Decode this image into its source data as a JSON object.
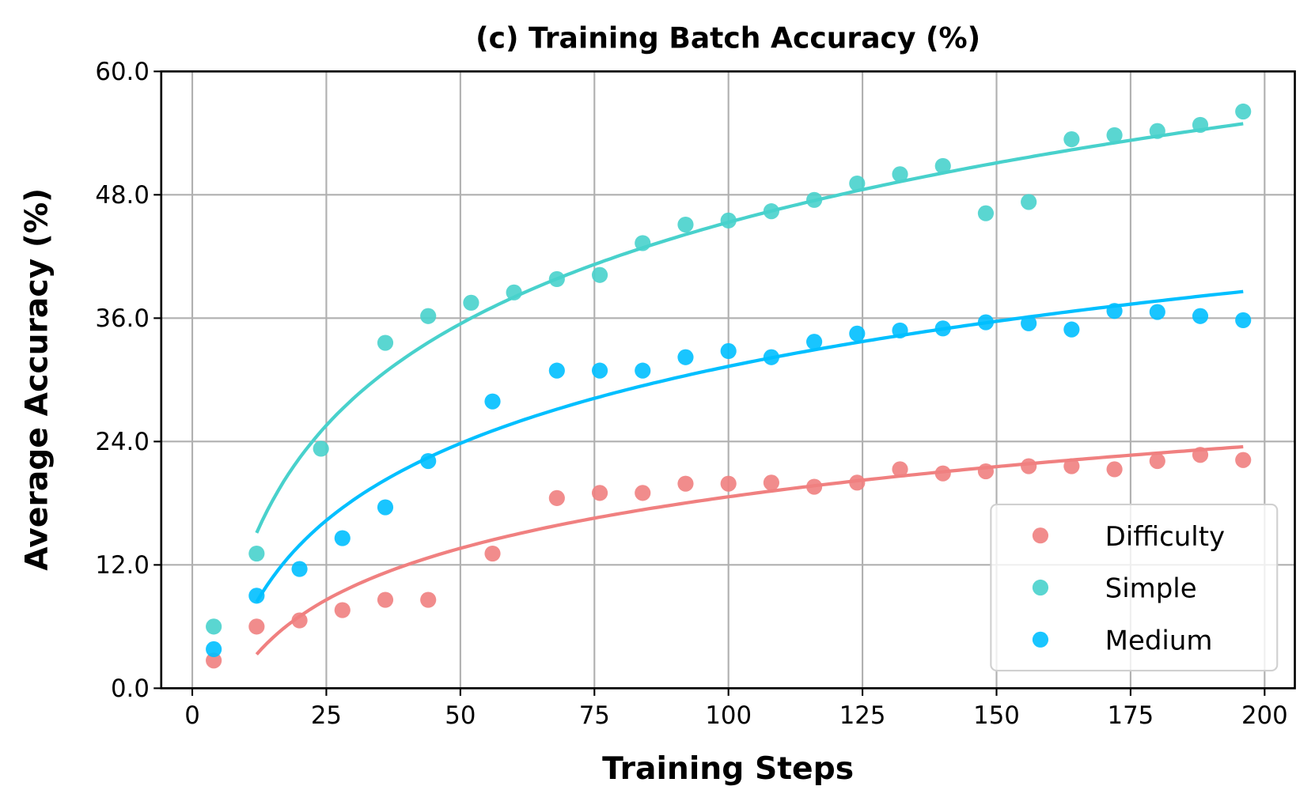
{
  "chart_data": {
    "type": "scatter",
    "title": "(c) Training Batch Accuracy (%)",
    "xlabel": "Training Steps",
    "ylabel": "Average Accuracy (%)",
    "xlim": [
      -6,
      205
    ],
    "ylim": [
      0,
      60
    ],
    "xticks": [
      "0",
      "25",
      "50",
      "75",
      "100",
      "125",
      "150",
      "175",
      "200"
    ],
    "xtick_values": [
      0,
      25,
      50,
      75,
      100,
      125,
      150,
      175,
      200
    ],
    "yticks": [
      "0.0",
      "12.0",
      "24.0",
      "36.0",
      "48.0",
      "60.0"
    ],
    "ytick_values": [
      0,
      12,
      24,
      36,
      48,
      60
    ],
    "grid": true,
    "legend_position": "bottom-right",
    "series": [
      {
        "name": "Difficulty",
        "color": "#F08080",
        "x": [
          4,
          12,
          20,
          28,
          36,
          44,
          56,
          68,
          76,
          84,
          92,
          100,
          108,
          116,
          124,
          132,
          140,
          148,
          156,
          164,
          172,
          180,
          188,
          196
        ],
        "y": [
          2.7,
          6.0,
          6.6,
          7.6,
          8.6,
          8.6,
          13.1,
          18.5,
          19.0,
          19.0,
          19.9,
          19.9,
          20.0,
          19.6,
          20.0,
          21.3,
          20.9,
          21.1,
          21.6,
          21.6,
          21.3,
          22.1,
          22.7,
          22.2
        ],
        "fit": {
          "form": "a + b*ln(x)",
          "a": -14.67,
          "b": 7.23,
          "x_range": [
            12,
            196
          ]
        }
      },
      {
        "name": "Simple",
        "color": "#48D1CC",
        "x": [
          4,
          12,
          24,
          36,
          44,
          52,
          60,
          68,
          76,
          84,
          92,
          100,
          108,
          116,
          124,
          132,
          140,
          148,
          156,
          164,
          172,
          180,
          188,
          196
        ],
        "y": [
          6.0,
          13.1,
          23.3,
          33.6,
          36.2,
          37.5,
          38.5,
          39.8,
          40.2,
          43.3,
          45.1,
          45.5,
          46.4,
          47.5,
          49.1,
          50.0,
          50.8,
          46.2,
          47.3,
          53.4,
          53.8,
          54.2,
          54.8,
          56.1
        ],
        "fit": {
          "form": "a + b*ln(x)",
          "a": -20.3,
          "b": 14.25,
          "x_range": [
            12,
            196
          ]
        }
      },
      {
        "name": "Medium",
        "color": "#00BFFF",
        "x": [
          4,
          12,
          20,
          28,
          36,
          44,
          56,
          68,
          76,
          84,
          92,
          100,
          108,
          116,
          124,
          132,
          140,
          148,
          156,
          164,
          172,
          180,
          188,
          196
        ],
        "y": [
          3.8,
          9.0,
          11.6,
          14.6,
          17.6,
          22.1,
          27.9,
          30.9,
          30.9,
          30.9,
          32.2,
          32.8,
          32.2,
          33.7,
          34.5,
          34.8,
          35.0,
          35.6,
          35.5,
          34.9,
          36.7,
          36.6,
          36.2,
          35.8
        ],
        "fit": {
          "form": "a + b*ln(x)",
          "a": -18.47,
          "b": 10.81,
          "x_range": [
            12,
            196
          ]
        }
      }
    ]
  }
}
